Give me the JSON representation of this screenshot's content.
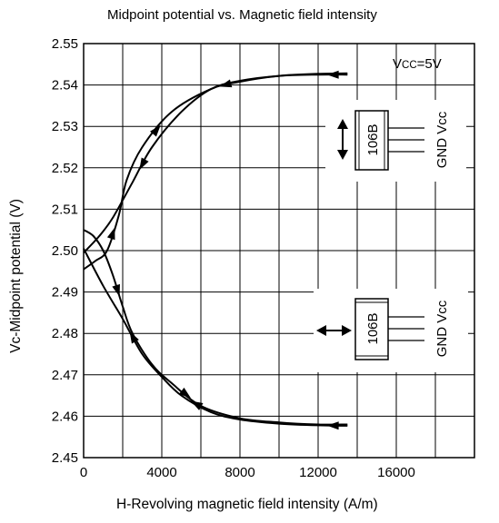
{
  "chart_data": {
    "type": "line",
    "title": "Midpoint potential vs. Magnetic field intensity",
    "xlabel": "H-Revolving magnetic field intensity (A/m)",
    "ylabel": "Vc-Midpoint potential (V)",
    "xlim": [
      0,
      20000
    ],
    "ylim": [
      2.45,
      2.55
    ],
    "xticks": [
      0,
      4000,
      8000,
      12000,
      16000
    ],
    "xtick_labels": [
      "0",
      "4000",
      "8000",
      "12000",
      "16000"
    ],
    "yticks": [
      2.45,
      2.46,
      2.47,
      2.48,
      2.49,
      2.5,
      2.51,
      2.52,
      2.53,
      2.54,
      2.55
    ],
    "ytick_labels": [
      "2.45",
      "2.46",
      "2.47",
      "2.48",
      "2.49",
      "2.50",
      "2.51",
      "2.52",
      "2.53",
      "2.54",
      "2.55"
    ],
    "grid": true,
    "annotations": {
      "supply": {
        "prefix": "V",
        "subscript": "CC",
        "suffix": "=5V"
      },
      "chip_label": "106B",
      "pin_label": "GND Vcc"
    },
    "series": [
      {
        "x": [
          13500,
          12000,
          10000,
          8000,
          6500,
          5000,
          3500,
          2500,
          1500,
          800,
          0
        ],
        "y": [
          2.5425,
          2.5425,
          2.5422,
          2.541,
          2.539,
          2.5335,
          2.525,
          2.5165,
          2.508,
          2.5035,
          2.4995
        ]
      },
      {
        "x": [
          0,
          600,
          1200,
          1800,
          2200,
          3000,
          4500,
          6500,
          8000,
          10000,
          12000,
          13500
        ],
        "y": [
          2.4955,
          2.4975,
          2.5,
          2.5085,
          2.517,
          2.525,
          2.5335,
          2.539,
          2.5408,
          2.5422,
          2.5427,
          2.5428
        ]
      },
      {
        "x": [
          13500,
          12000,
          10000,
          8000,
          6500,
          5000,
          4000,
          3000,
          2000,
          1000,
          0
        ],
        "y": [
          2.4577,
          2.4578,
          2.4582,
          2.4592,
          2.461,
          2.465,
          2.4695,
          2.475,
          2.4835,
          2.4915,
          2.5005
        ]
      },
      {
        "x": [
          0,
          500,
          1000,
          1500,
          2000,
          2500,
          3500,
          4500,
          6000,
          8000,
          10000,
          12000,
          13500
        ],
        "y": [
          2.505,
          2.5035,
          2.5,
          2.494,
          2.4865,
          2.48,
          2.4725,
          2.468,
          2.4625,
          2.4595,
          2.4585,
          2.458,
          2.458
        ]
      }
    ]
  }
}
